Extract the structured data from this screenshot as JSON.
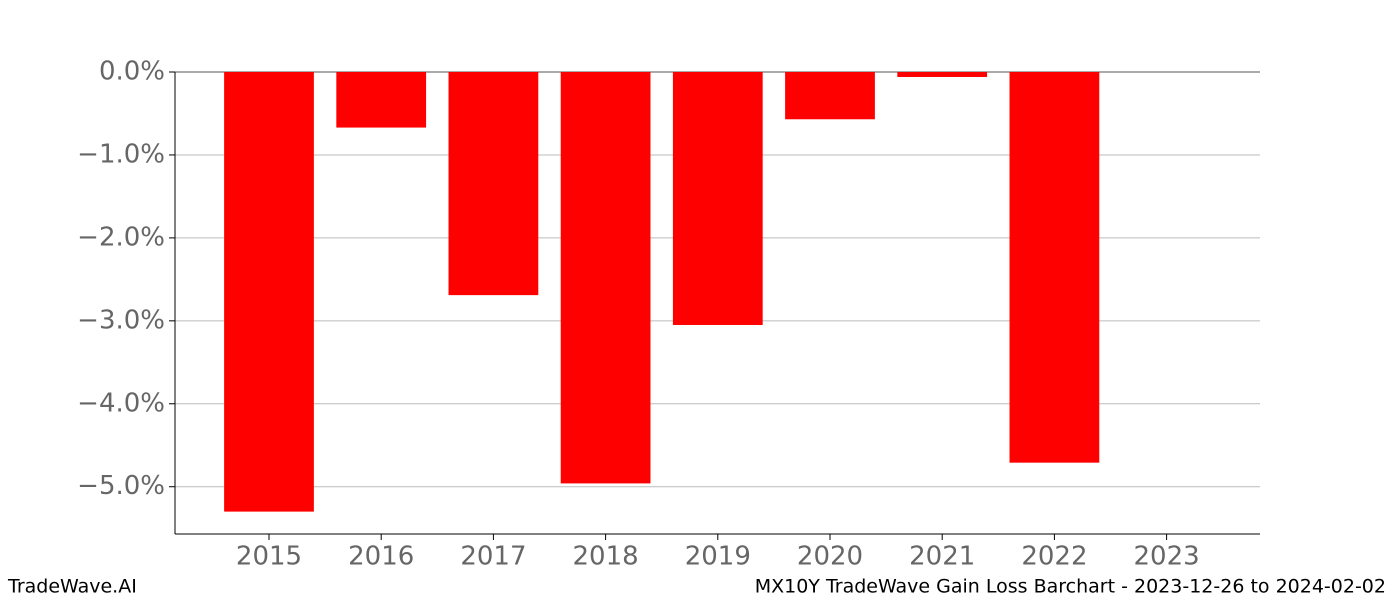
{
  "chart_data": {
    "type": "bar",
    "title": "MX10Y TradeWave Gain Loss Barchart - 2023-12-26 to 2024-02-02",
    "watermark": "TradeWave.AI",
    "categories": [
      "2015",
      "2016",
      "2017",
      "2018",
      "2019",
      "2020",
      "2021",
      "2022",
      "2023"
    ],
    "values": [
      -5.3,
      -0.67,
      -2.69,
      -4.96,
      -3.05,
      -0.57,
      -0.06,
      -4.71,
      null
    ],
    "color": "#ff0000",
    "ylim": [
      -5.57,
      0
    ],
    "yticks": [
      {
        "value": 0,
        "label": "0.0%"
      },
      {
        "value": -1,
        "label": "−1.0%"
      },
      {
        "value": -2,
        "label": "−2.0%"
      },
      {
        "value": -3,
        "label": "−3.0%"
      },
      {
        "value": -4,
        "label": "−4.0%"
      },
      {
        "value": -5,
        "label": "−5.0%"
      }
    ],
    "grid": true
  }
}
